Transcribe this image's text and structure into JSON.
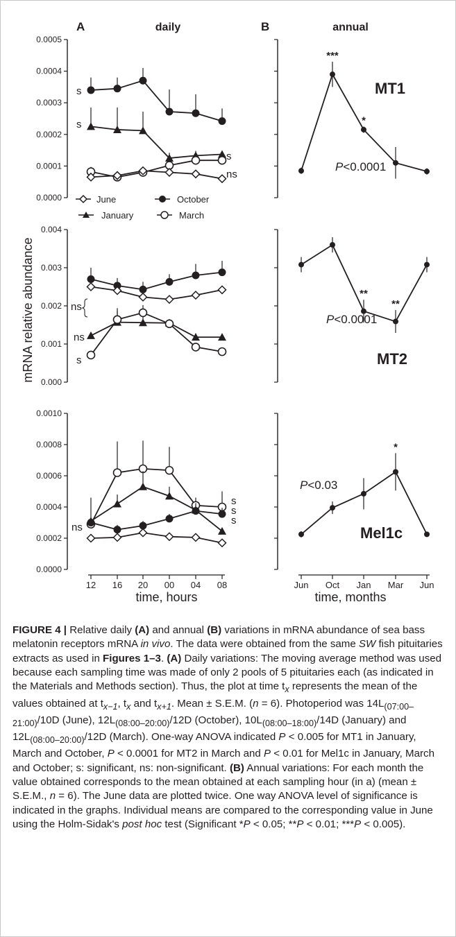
{
  "panel_labels": {
    "a": "A",
    "b": "B"
  },
  "column_titles": {
    "daily": "daily",
    "annual": "annual"
  },
  "y_axis_label": "mRNA relative abundance",
  "x_labels": {
    "daily": "time, hours",
    "annual": "time, months"
  },
  "legend": {
    "june": "June",
    "october": "October",
    "january": "January",
    "march": "March"
  },
  "chart_data": [
    {
      "type": "line",
      "panel": "A-MT1",
      "xlabel": "time, hours",
      "ylabel": "mRNA relative abundance",
      "categories": [
        "12",
        "16",
        "20",
        "00",
        "04",
        "08"
      ],
      "ylim": [
        0,
        0.0005
      ],
      "yticks": [
        "0.0000",
        "0.0001",
        "0.0002",
        "0.0003",
        "0.0004",
        "0.0005"
      ],
      "series": [
        {
          "name": "October",
          "marker": "filled-circle",
          "values": [
            0.00034,
            0.000345,
            0.00037,
            0.000272,
            0.000267,
            0.000242
          ],
          "err": [
            4e-05,
            3.5e-05,
            4e-05,
            7e-05,
            6e-05,
            4e-05
          ],
          "sig": "s"
        },
        {
          "name": "January",
          "marker": "filled-triangle",
          "values": [
            0.000225,
            0.000215,
            0.000212,
            0.000125,
            0.000133,
            0.000137
          ],
          "err": [
            6e-05,
            7e-05,
            6e-05,
            1e-05,
            1.5e-05,
            1e-05
          ],
          "sig": "s"
        },
        {
          "name": "March",
          "marker": "open-circle",
          "values": [
            8.2e-05,
            6.5e-05,
            8e-05,
            0.000102,
            0.000118,
            0.000118
          ],
          "err": [
            1.5e-05,
            1e-05,
            1e-05,
            4e-05,
            1e-05,
            3e-05
          ],
          "sig": "s"
        },
        {
          "name": "June",
          "marker": "open-diamond",
          "values": [
            6.5e-05,
            7e-05,
            8.5e-05,
            8e-05,
            7.5e-05,
            6e-05
          ],
          "err": [
            5e-06,
            5e-06,
            5e-06,
            5e-06,
            5e-06,
            5e-06
          ],
          "sig": "ns"
        }
      ]
    },
    {
      "type": "line",
      "panel": "A-MT2",
      "xlabel": "time, hours",
      "ylabel": "mRNA relative abundance",
      "categories": [
        "12",
        "16",
        "20",
        "00",
        "04",
        "08"
      ],
      "ylim": [
        0,
        0.004
      ],
      "yticks": [
        "0.000",
        "0.001",
        "0.002",
        "0.003",
        "0.004"
      ],
      "series": [
        {
          "name": "October",
          "marker": "filled-circle",
          "values": [
            0.0027,
            0.00253,
            0.00243,
            0.00263,
            0.0028,
            0.00288
          ],
          "err": [
            0.0003,
            0.0002,
            0.0002,
            0.0002,
            0.0003,
            0.0003
          ],
          "sig": "ns"
        },
        {
          "name": "June",
          "marker": "open-diamond",
          "values": [
            0.0025,
            0.0024,
            0.00223,
            0.00217,
            0.00228,
            0.00242
          ],
          "err": [
            0.0001,
            0.0001,
            0.0001,
            0.0001,
            0.0001,
            0.0001
          ],
          "sig": "ns"
        },
        {
          "name": "January",
          "marker": "filled-triangle",
          "values": [
            0.00122,
            0.00157,
            0.00156,
            0.00155,
            0.00118,
            0.00118
          ],
          "err": [
            5e-05,
            0.0003,
            0.0003,
            0.0001,
            0.0001,
            5e-05
          ],
          "sig": "ns"
        },
        {
          "name": "March",
          "marker": "open-circle",
          "values": [
            0.00071,
            0.00164,
            0.00182,
            0.00153,
            0.00092,
            0.0008
          ],
          "err": [
            5e-05,
            0.0003,
            0.0002,
            0.0001,
            0.0001,
            5e-05
          ],
          "sig": "s"
        }
      ]
    },
    {
      "type": "line",
      "panel": "A-Mel1c",
      "xlabel": "time, hours",
      "ylabel": "mRNA relative abundance",
      "categories": [
        "12",
        "16",
        "20",
        "00",
        "04",
        "08"
      ],
      "ylim": [
        0,
        0.001
      ],
      "yticks": [
        "0.0000",
        "0.0002",
        "0.0004",
        "0.0006",
        "0.0008",
        "0.0010"
      ],
      "series": [
        {
          "name": "March",
          "marker": "open-circle",
          "values": [
            0.00029,
            0.00062,
            0.000645,
            0.000635,
            0.00041,
            0.0004
          ],
          "err": [
            1e-05,
            0.0002,
            0.00018,
            0.00015,
            5e-05,
            0.0001
          ],
          "sig": "s"
        },
        {
          "name": "January",
          "marker": "filled-triangle",
          "values": [
            0.00031,
            0.00042,
            0.00053,
            0.00047,
            0.00038,
            0.000245
          ],
          "err": [
            0.00015,
            6e-05,
            0.0001,
            6e-05,
            3e-05,
            2e-05
          ],
          "sig": "s"
        },
        {
          "name": "October",
          "marker": "filled-circle",
          "values": [
            0.0003,
            0.000255,
            0.00028,
            0.000325,
            0.000375,
            0.000355
          ],
          "err": [
            1e-05,
            3e-05,
            3e-05,
            3e-05,
            5e-05,
            4e-05
          ],
          "sig": "s"
        },
        {
          "name": "June",
          "marker": "open-diamond",
          "values": [
            0.0002,
            0.000205,
            0.000235,
            0.00021,
            0.000205,
            0.00017
          ],
          "err": [
            5e-06,
            5e-06,
            2e-05,
            5e-06,
            5e-06,
            5e-06
          ],
          "sig": "ns"
        }
      ]
    },
    {
      "type": "line",
      "panel": "B-MT1",
      "label": "MT1",
      "xlabel": "time, months",
      "categories": [
        "Jun",
        "Oct",
        "Jan",
        "Mar",
        "Jun"
      ],
      "ylim": [
        0,
        0.0005
      ],
      "series": [
        {
          "values": [
            8.5e-05,
            0.00039,
            0.000215,
            0.00011,
            8.3e-05
          ],
          "err": [
            1e-05,
            4e-05,
            1e-05,
            5e-05,
            1e-05
          ],
          "stars": [
            "",
            "***",
            "*",
            "",
            ""
          ]
        }
      ],
      "annotation": "P<0.0001"
    },
    {
      "type": "line",
      "panel": "B-MT2",
      "label": "MT2",
      "xlabel": "time, months",
      "categories": [
        "Jun",
        "Oct",
        "Jan",
        "Mar",
        "Jun"
      ],
      "ylim": [
        0,
        0.004
      ],
      "series": [
        {
          "values": [
            0.00308,
            0.0036,
            0.00186,
            0.00159,
            0.00308
          ],
          "err": [
            0.0002,
            0.0002,
            0.0003,
            0.0003,
            0.0002
          ],
          "stars": [
            "",
            "",
            "**",
            "**",
            ""
          ]
        }
      ],
      "annotation": "P<0.0001"
    },
    {
      "type": "line",
      "panel": "B-Mel1c",
      "label": "Mel1c",
      "xlabel": "time, months",
      "categories": [
        "Jun",
        "Oct",
        "Jan",
        "Mar",
        "Jun"
      ],
      "ylim": [
        0,
        0.001
      ],
      "series": [
        {
          "values": [
            0.000225,
            0.000395,
            0.000485,
            0.000625,
            0.000225
          ],
          "err": [
            2e-05,
            4e-05,
            0.0001,
            0.00012,
            1e-05
          ],
          "stars": [
            "",
            "",
            "",
            "*",
            ""
          ]
        }
      ],
      "annotation": "P<0.03"
    }
  ],
  "caption": {
    "fig_label": "FIGURE 4 |",
    "p1": " Relative daily ",
    "a1": "(A)",
    "p2": " and annual ",
    "b1": "(B)",
    "p3": " variations in mRNA abundance of sea bass melatonin receptors mRNA ",
    "invivo": "in vivo",
    "p4": ". The data were obtained from the same ",
    "sw": "SW",
    "p5": " fish pituitaries extracts as used in ",
    "figs": "Figures 1–3",
    "p6": ". ",
    "a2": "(A)",
    "p7": " Daily variations: The moving average method was used because each sampling time was made of only 2 pools of 5 pituitaries each (as indicated in the Materials and Methods section). Thus, the plot at time t",
    "sub_x": "x",
    "p8": " represents the mean of the values obtained at t",
    "sub_xm1": "x−1",
    "p9": ", t",
    "sub_x2": "x",
    "p10": " and t",
    "sub_xp1": "x+1",
    "p11": ". Mean ± S.E.M. (",
    "n1": "n",
    "p12": " = 6). Photoperiod was 14L",
    "sub_june": "(07:00–21:00)",
    "p13": "/10D (June), 12L",
    "sub_oct": "(08:00–20:00)",
    "p14": "/12D (October), 10L",
    "sub_jan": "(08:00–18:00)",
    "p15": "/14D (January) and 12L",
    "sub_mar": "(08:00–20:00)",
    "p16": "/12D (March). One-way ANOVA indicated ",
    "P1": "P",
    "p17": " < 0.005 for MT1 in January, March and October, ",
    "P2": "P",
    "p18": " < 0.0001 for MT2 in March and ",
    "P3": "P",
    "p19": " < 0.01 for Mel1c in January, March and October; s: significant, ns: non-significant. ",
    "b2": "(B)",
    "p20": " Annual variations: For each month the value obtained corresponds to the mean obtained at each sampling hour (in a) (mean ± S.E.M., ",
    "n2": "n",
    "p21": " = 6). The June data are plotted twice. One way ANOVA level of significance is indicated in the graphs. Individual means are compared to the corresponding value in June using the Holm-Sidak's ",
    "posthoc": "post hoc",
    "p22": " test (Significant *",
    "P4": "P",
    "p23": " < 0.05; **",
    "P5": "P",
    "p24": " < 0.01; ***",
    "P6": "P",
    "p25": " < 0.005)."
  }
}
